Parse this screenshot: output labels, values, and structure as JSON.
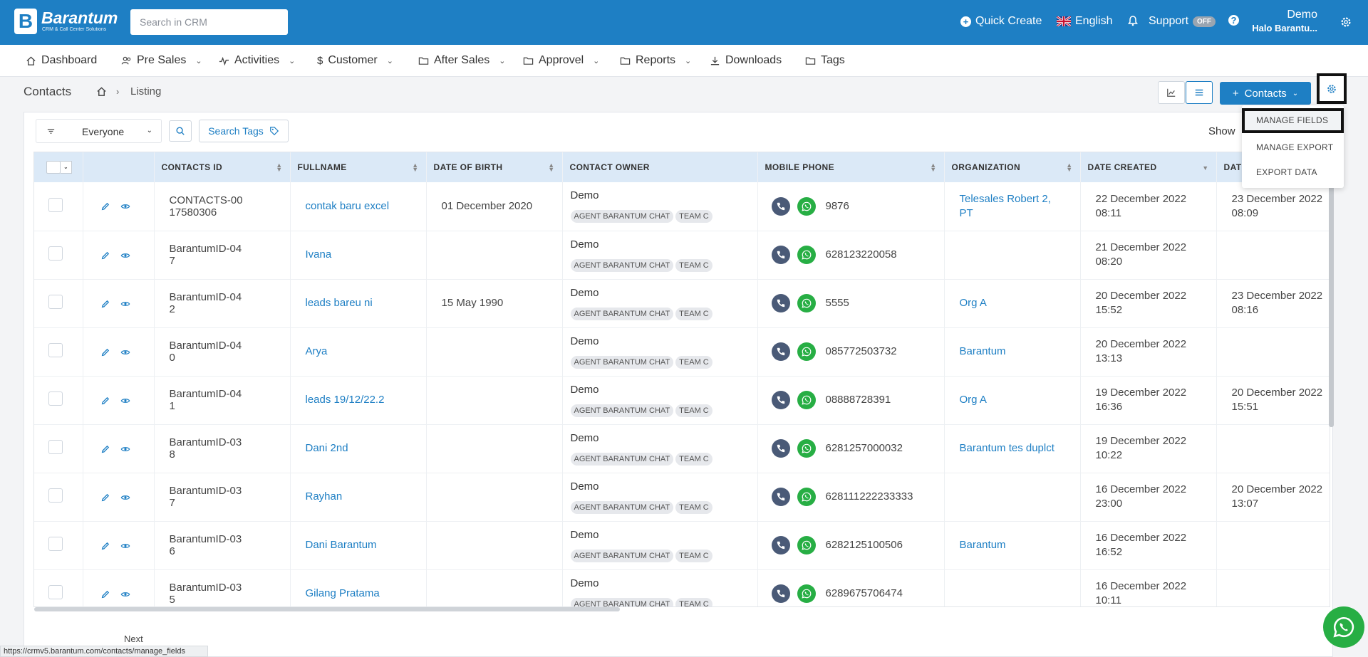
{
  "header": {
    "brand_title": "Barantum",
    "brand_sub": "CRM & Call Center Solutions",
    "search_placeholder": "Search in CRM",
    "quick_create": "Quick Create",
    "language": "English",
    "support": "Support",
    "support_toggle": "OFF",
    "user_name": "Demo",
    "user_sub": "Halo Barantu..."
  },
  "nav": {
    "dashboard": "Dashboard",
    "pre_sales": "Pre Sales",
    "activities": "Activities",
    "customer": "Customer",
    "after_sales": "After Sales",
    "approvel": "Approvel",
    "reports": "Reports",
    "downloads": "Downloads",
    "tags": "Tags"
  },
  "page": {
    "title": "Contacts",
    "crumb": "Listing",
    "contacts_button": "Contacts",
    "filter_value": "Everyone",
    "search_tags": "Search Tags",
    "show_label": "Show",
    "next": "Next"
  },
  "dropdown": {
    "manage_fields": "MANAGE FIELDS",
    "manage_export": "MANAGE EXPORT",
    "export_data": "EXPORT DATA"
  },
  "table": {
    "headers": {
      "contacts_id": "CONTACTS ID",
      "fullname": "FULLNAME",
      "dob": "DATE OF BIRTH",
      "owner": "CONTACT OWNER",
      "mobile": "MOBILE PHONE",
      "org": "ORGANIZATION",
      "created": "DATE CREATED",
      "dat": "DAT"
    },
    "owner_pill_1": "AGENT BARANTUM CHAT",
    "owner_pill_2": "TEAM C",
    "rows": [
      {
        "id": "CONTACTS-0017580306",
        "name": "contak baru excel",
        "dob": "01 December 2020",
        "owner": "Demo",
        "phone": "9876",
        "org": "Telesales Robert 2, PT",
        "created": "22 December 2022 08:11",
        "modified": "23 December 2022 08:09"
      },
      {
        "id": "BarantumID-047",
        "name": "Ivana",
        "dob": "",
        "owner": "Demo",
        "phone": "628123220058",
        "org": "",
        "created": "21 December 2022 08:20",
        "modified": ""
      },
      {
        "id": "BarantumID-042",
        "name": "leads bareu ni",
        "dob": "15 May 1990",
        "owner": "Demo",
        "phone": "5555",
        "org": "Org A",
        "created": "20 December 2022 15:52",
        "modified": "23 December 2022 08:16"
      },
      {
        "id": "BarantumID-040",
        "name": "Arya",
        "dob": "",
        "owner": "Demo",
        "phone": "085772503732",
        "org": "Barantum",
        "created": "20 December 2022 13:13",
        "modified": ""
      },
      {
        "id": "BarantumID-041",
        "name": "leads 19/12/22.2",
        "dob": "",
        "owner": "Demo",
        "phone": "08888728391",
        "org": "Org A",
        "created": "19 December 2022 16:36",
        "modified": "20 December 2022 15:51"
      },
      {
        "id": "BarantumID-038",
        "name": "Dani 2nd",
        "dob": "",
        "owner": "Demo",
        "phone": "6281257000032",
        "org": "Barantum tes duplct",
        "created": "19 December 2022 10:22",
        "modified": ""
      },
      {
        "id": "BarantumID-037",
        "name": "Rayhan",
        "dob": "",
        "owner": "Demo",
        "phone": "628111222233333",
        "org": "",
        "created": "16 December 2022 23:00",
        "modified": "20 December 2022 13:07"
      },
      {
        "id": "BarantumID-036",
        "name": "Dani Barantum",
        "dob": "",
        "owner": "Demo",
        "phone": "6282125100506",
        "org": "Barantum",
        "created": "16 December 2022 16:52",
        "modified": ""
      },
      {
        "id": "BarantumID-035",
        "name": "Gilang Pratama",
        "dob": "",
        "owner": "Demo",
        "phone": "6289675706474",
        "org": "",
        "created": "16 December 2022 10:11",
        "modified": ""
      }
    ]
  },
  "status_url": "https://crmv5.barantum.com/contacts/manage_fields"
}
